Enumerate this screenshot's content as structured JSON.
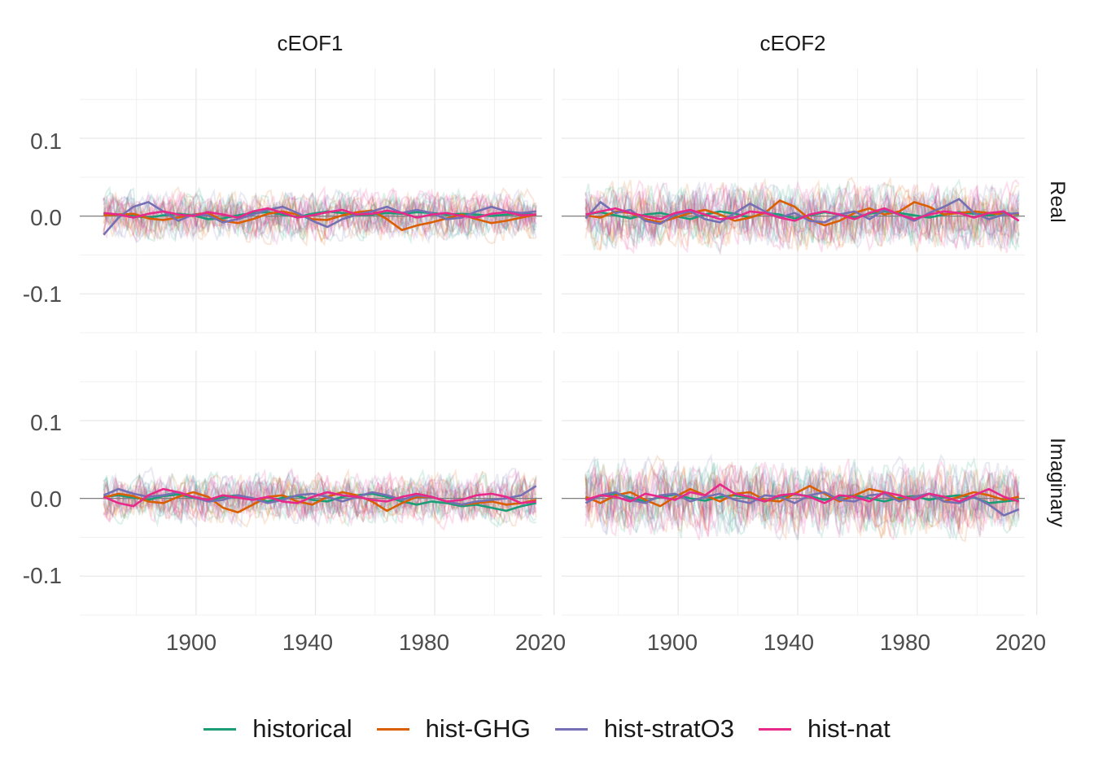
{
  "chart_data": {
    "type": "line",
    "facets": {
      "columns": [
        "cEOF1",
        "cEOF2"
      ],
      "rows": [
        "Real",
        "Imaginary"
      ]
    },
    "x_axis": {
      "ticks": [
        1900,
        1940,
        1980,
        2020
      ],
      "range": [
        1861,
        2016
      ]
    },
    "y_axis": {
      "ticks": [
        -0.1,
        0.0,
        0.1
      ],
      "tick_labels": [
        "-0.1",
        "0.0",
        "0.1"
      ],
      "range": [
        -0.15,
        0.19
      ]
    },
    "grid": true,
    "legend_position": "bottom",
    "series": [
      {
        "name": "historical",
        "color": "#1b9e77"
      },
      {
        "name": "hist-GHG",
        "color": "#d95f02"
      },
      {
        "name": "hist-stratO3",
        "color": "#7570b3"
      },
      {
        "name": "hist-nat",
        "color": "#e7298a"
      }
    ],
    "panels": [
      {
        "col": "cEOF1",
        "row": "Real",
        "x_start": 1869,
        "x_step": 5,
        "means": {
          "historical": [
            0.003,
            0.002,
            0.0,
            -0.002,
            0.001,
            0.003,
            0.001,
            -0.004,
            -0.003,
            0.001,
            0.004,
            0.005,
            0.002,
            -0.001,
            0.003,
            0.006,
            0.004,
            0.001,
            0.002,
            0.004,
            0.003,
            0.005,
            0.004,
            0.002,
            0.003,
            0.002,
            0.0,
            0.002,
            0.003,
            0.002
          ],
          "hist-GHG": [
            0.001,
            0.002,
            0.003,
            -0.003,
            -0.005,
            -0.002,
            0.002,
            0.004,
            -0.006,
            -0.009,
            -0.004,
            0.003,
            0.006,
            0.002,
            -0.004,
            -0.005,
            0.001,
            0.005,
            0.007,
            -0.004,
            -0.018,
            -0.012,
            -0.008,
            -0.003,
            0.002,
            -0.004,
            -0.009,
            -0.006,
            -0.002,
            0.002
          ],
          "hist-stratO3": [
            -0.024,
            -0.002,
            0.012,
            0.018,
            0.006,
            -0.006,
            0.002,
            0.001,
            -0.008,
            -0.004,
            0.002,
            0.008,
            0.012,
            0.004,
            -0.006,
            -0.014,
            -0.004,
            0.002,
            0.006,
            0.012,
            0.004,
            0.008,
            0.004,
            -0.004,
            -0.002,
            0.006,
            0.012,
            0.006,
            0.004,
            0.006
          ],
          "hist-nat": [
            0.004,
            0.002,
            -0.002,
            0.003,
            0.006,
            0.002,
            0.0,
            0.005,
            0.002,
            -0.002,
            0.006,
            0.01,
            0.004,
            -0.002,
            0.001,
            0.005,
            0.008,
            0.002,
            0.003,
            0.007,
            0.004,
            -0.002,
            0.002,
            0.004,
            0.0,
            -0.002,
            0.003,
            0.005,
            0.001,
            0.002
          ]
        }
      },
      {
        "col": "cEOF2",
        "row": "Real",
        "x_start": 1869,
        "x_step": 5,
        "means": {
          "historical": [
            0.002,
            0.005,
            0.001,
            -0.003,
            0.002,
            0.004,
            0.0,
            -0.004,
            0.002,
            0.006,
            0.003,
            -0.002,
            0.004,
            0.002,
            -0.003,
            0.001,
            0.005,
            0.002,
            -0.002,
            0.003,
            0.006,
            0.004,
            0.001,
            -0.002,
            0.002,
            0.005,
            0.003,
            0.001,
            0.004,
            0.002
          ],
          "hist-GHG": [
            0.001,
            -0.002,
            0.006,
            0.004,
            -0.004,
            -0.008,
            -0.002,
            0.004,
            0.008,
            0.002,
            -0.006,
            -0.002,
            0.004,
            0.02,
            0.012,
            -0.004,
            -0.012,
            -0.006,
            0.004,
            0.01,
            0.002,
            0.006,
            0.018,
            0.012,
            0.002,
            0.004,
            0.006,
            0.004,
            0.002,
            0.003
          ],
          "hist-stratO3": [
            -0.003,
            0.018,
            0.004,
            0.008,
            -0.006,
            -0.01,
            0.002,
            0.006,
            -0.004,
            -0.008,
            0.004,
            0.016,
            0.006,
            -0.002,
            0.004,
            -0.006,
            -0.008,
            0.002,
            0.006,
            -0.004,
            0.008,
            0.002,
            -0.006,
            0.004,
            0.012,
            0.022,
            0.004,
            -0.004,
            0.002,
            0.004
          ],
          "hist-nat": [
            0.002,
            0.006,
            0.01,
            0.004,
            0.0,
            -0.004,
            0.004,
            0.008,
            0.002,
            -0.004,
            -0.002,
            0.006,
            0.004,
            -0.002,
            -0.006,
            0.002,
            0.006,
            0.002,
            -0.004,
            0.004,
            0.01,
            0.002,
            -0.004,
            0.002,
            0.006,
            0.004,
            -0.002,
            0.004,
            0.006,
            -0.006
          ]
        }
      },
      {
        "col": "cEOF1",
        "row": "Imaginary",
        "x_start": 1869,
        "x_step": 5,
        "means": {
          "historical": [
            0.002,
            0.004,
            0.001,
            -0.002,
            0.003,
            0.005,
            0.001,
            -0.003,
            0.002,
            0.004,
            0.0,
            -0.004,
            0.001,
            0.003,
            -0.002,
            -0.004,
            0.002,
            0.004,
            0.006,
            0.002,
            -0.004,
            -0.008,
            -0.004,
            -0.006,
            -0.01,
            -0.008,
            -0.012,
            -0.016,
            -0.01,
            -0.006
          ],
          "hist-GHG": [
            0.001,
            0.006,
            0.003,
            -0.004,
            -0.006,
            0.002,
            0.008,
            0.002,
            -0.012,
            -0.018,
            -0.008,
            0.002,
            0.004,
            -0.004,
            -0.008,
            0.002,
            0.008,
            0.004,
            -0.004,
            -0.016,
            -0.006,
            0.002,
            0.002,
            -0.004,
            -0.008,
            -0.006,
            -0.004,
            -0.008,
            -0.006,
            -0.002
          ],
          "hist-stratO3": [
            0.004,
            0.012,
            0.006,
            0.002,
            0.004,
            0.008,
            0.002,
            -0.004,
            -0.002,
            0.004,
            0.0,
            -0.006,
            -0.002,
            0.004,
            0.006,
            0.002,
            -0.004,
            0.002,
            0.008,
            0.004,
            -0.002,
            0.004,
            0.002,
            -0.004,
            -0.008,
            -0.004,
            -0.002,
            0.0,
            0.004,
            0.016
          ],
          "hist-nat": [
            0.002,
            -0.006,
            -0.01,
            0.004,
            0.012,
            0.008,
            0.002,
            -0.002,
            0.004,
            0.001,
            -0.002,
            0.002,
            -0.004,
            -0.006,
            0.002,
            0.008,
            0.004,
            0.002,
            -0.002,
            -0.004,
            0.002,
            0.006,
            0.002,
            -0.004,
            -0.002,
            0.004,
            0.006,
            0.002,
            -0.006,
            -0.004
          ]
        }
      },
      {
        "col": "cEOF2",
        "row": "Imaginary",
        "x_start": 1869,
        "x_step": 5,
        "means": {
          "historical": [
            -0.002,
            0.003,
            0.006,
            0.001,
            -0.004,
            0.002,
            0.005,
            0.0,
            -0.003,
            0.002,
            0.004,
            0.001,
            -0.004,
            0.002,
            0.005,
            0.003,
            -0.002,
            0.002,
            0.004,
            0.0,
            -0.004,
            0.001,
            0.003,
            -0.002,
            0.002,
            0.004,
            0.001,
            -0.006,
            -0.004,
            -0.002
          ],
          "hist-GHG": [
            0.002,
            -0.006,
            0.004,
            0.008,
            -0.002,
            -0.01,
            0.002,
            0.012,
            0.004,
            -0.004,
            0.006,
            0.008,
            -0.002,
            -0.004,
            0.006,
            0.016,
            0.006,
            -0.004,
            0.004,
            0.012,
            0.008,
            -0.002,
            0.002,
            0.006,
            -0.004,
            0.002,
            0.008,
            0.004,
            -0.002,
            0.002
          ],
          "hist-stratO3": [
            -0.006,
            0.004,
            0.008,
            -0.002,
            -0.006,
            0.004,
            0.006,
            -0.004,
            0.002,
            0.006,
            -0.002,
            -0.006,
            0.004,
            0.002,
            -0.006,
            0.004,
            0.008,
            -0.002,
            -0.004,
            0.004,
            0.006,
            -0.004,
            0.002,
            0.006,
            -0.004,
            -0.006,
            0.002,
            -0.008,
            -0.022,
            -0.014
          ],
          "hist-nat": [
            -0.002,
            0.004,
            0.002,
            -0.004,
            0.006,
            0.002,
            -0.002,
            0.008,
            0.004,
            0.018,
            0.006,
            0.002,
            -0.004,
            0.004,
            0.006,
            0.002,
            -0.006,
            0.004,
            0.002,
            -0.004,
            0.008,
            0.004,
            -0.002,
            0.006,
            0.002,
            -0.004,
            0.004,
            0.012,
            0.002,
            -0.004
          ]
        }
      }
    ],
    "ensemble_members": {
      "count_per_series": 5,
      "approx_amplitude": {
        "cEOF1-Real": 0.03,
        "cEOF2-Real": 0.04,
        "cEOF1-Imaginary": 0.03,
        "cEOF2-Imaginary": 0.045
      },
      "opacity": 0.15
    }
  }
}
